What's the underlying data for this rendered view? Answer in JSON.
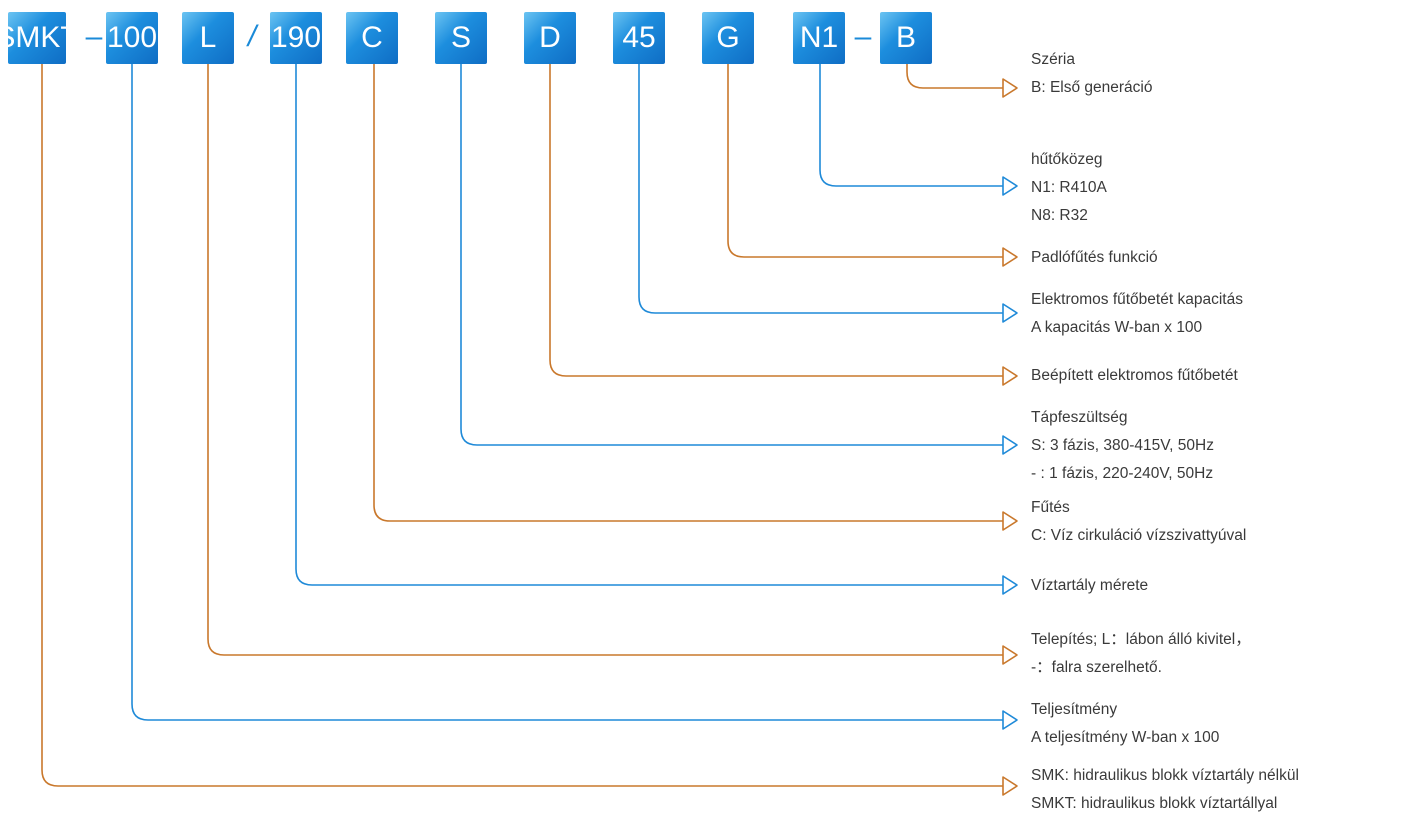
{
  "colors": {
    "orange": "#c9782c",
    "blue": "#1f8ad8",
    "box": "#1a7fd4",
    "text": "#3a3a3a"
  },
  "segments": [
    {
      "code": "SMKT",
      "color": "orange",
      "lines": [
        "SMK: hidraulikus blokk víztartály nélkül",
        "SMKT: hidraulikus blokk víztartállyal"
      ]
    },
    {
      "code": "100",
      "color": "blue",
      "lines": [
        "Teljesítmény",
        "A teljesítmény W-ban x 100"
      ]
    },
    {
      "code": "L",
      "color": "orange",
      "lines": [
        "Telepítés; L：lábon álló kivitel，",
        "-：falra szerelhető."
      ]
    },
    {
      "code": "190",
      "color": "blue",
      "lines": [
        "Víztartály mérete"
      ]
    },
    {
      "code": "C",
      "color": "orange",
      "lines": [
        "Fűtés",
        "C: Víz cirkuláció vízszivattyúval"
      ]
    },
    {
      "code": "S",
      "color": "blue",
      "lines": [
        "Tápfeszültség",
        "S: 3 fázis, 380-415V, 50Hz",
        "- : 1 fázis, 220-240V, 50Hz"
      ]
    },
    {
      "code": "D",
      "color": "orange",
      "lines": [
        "Beépített elektromos fűtőbetét"
      ]
    },
    {
      "code": "45",
      "color": "blue",
      "lines": [
        "Elektromos fűtőbetét kapacitás",
        "A kapacitás W-ban x 100"
      ]
    },
    {
      "code": "G",
      "color": "orange",
      "lines": [
        "Padlófűtés funkció"
      ]
    },
    {
      "code": "N1",
      "color": "blue",
      "lines": [
        "hűtőközeg",
        "N1: R410A",
        "N8: R32"
      ]
    },
    {
      "code": "B",
      "color": "orange",
      "lines": [
        "Széria",
        "B: Első generáció"
      ]
    }
  ],
  "separators": [
    "–",
    "/",
    "–"
  ]
}
